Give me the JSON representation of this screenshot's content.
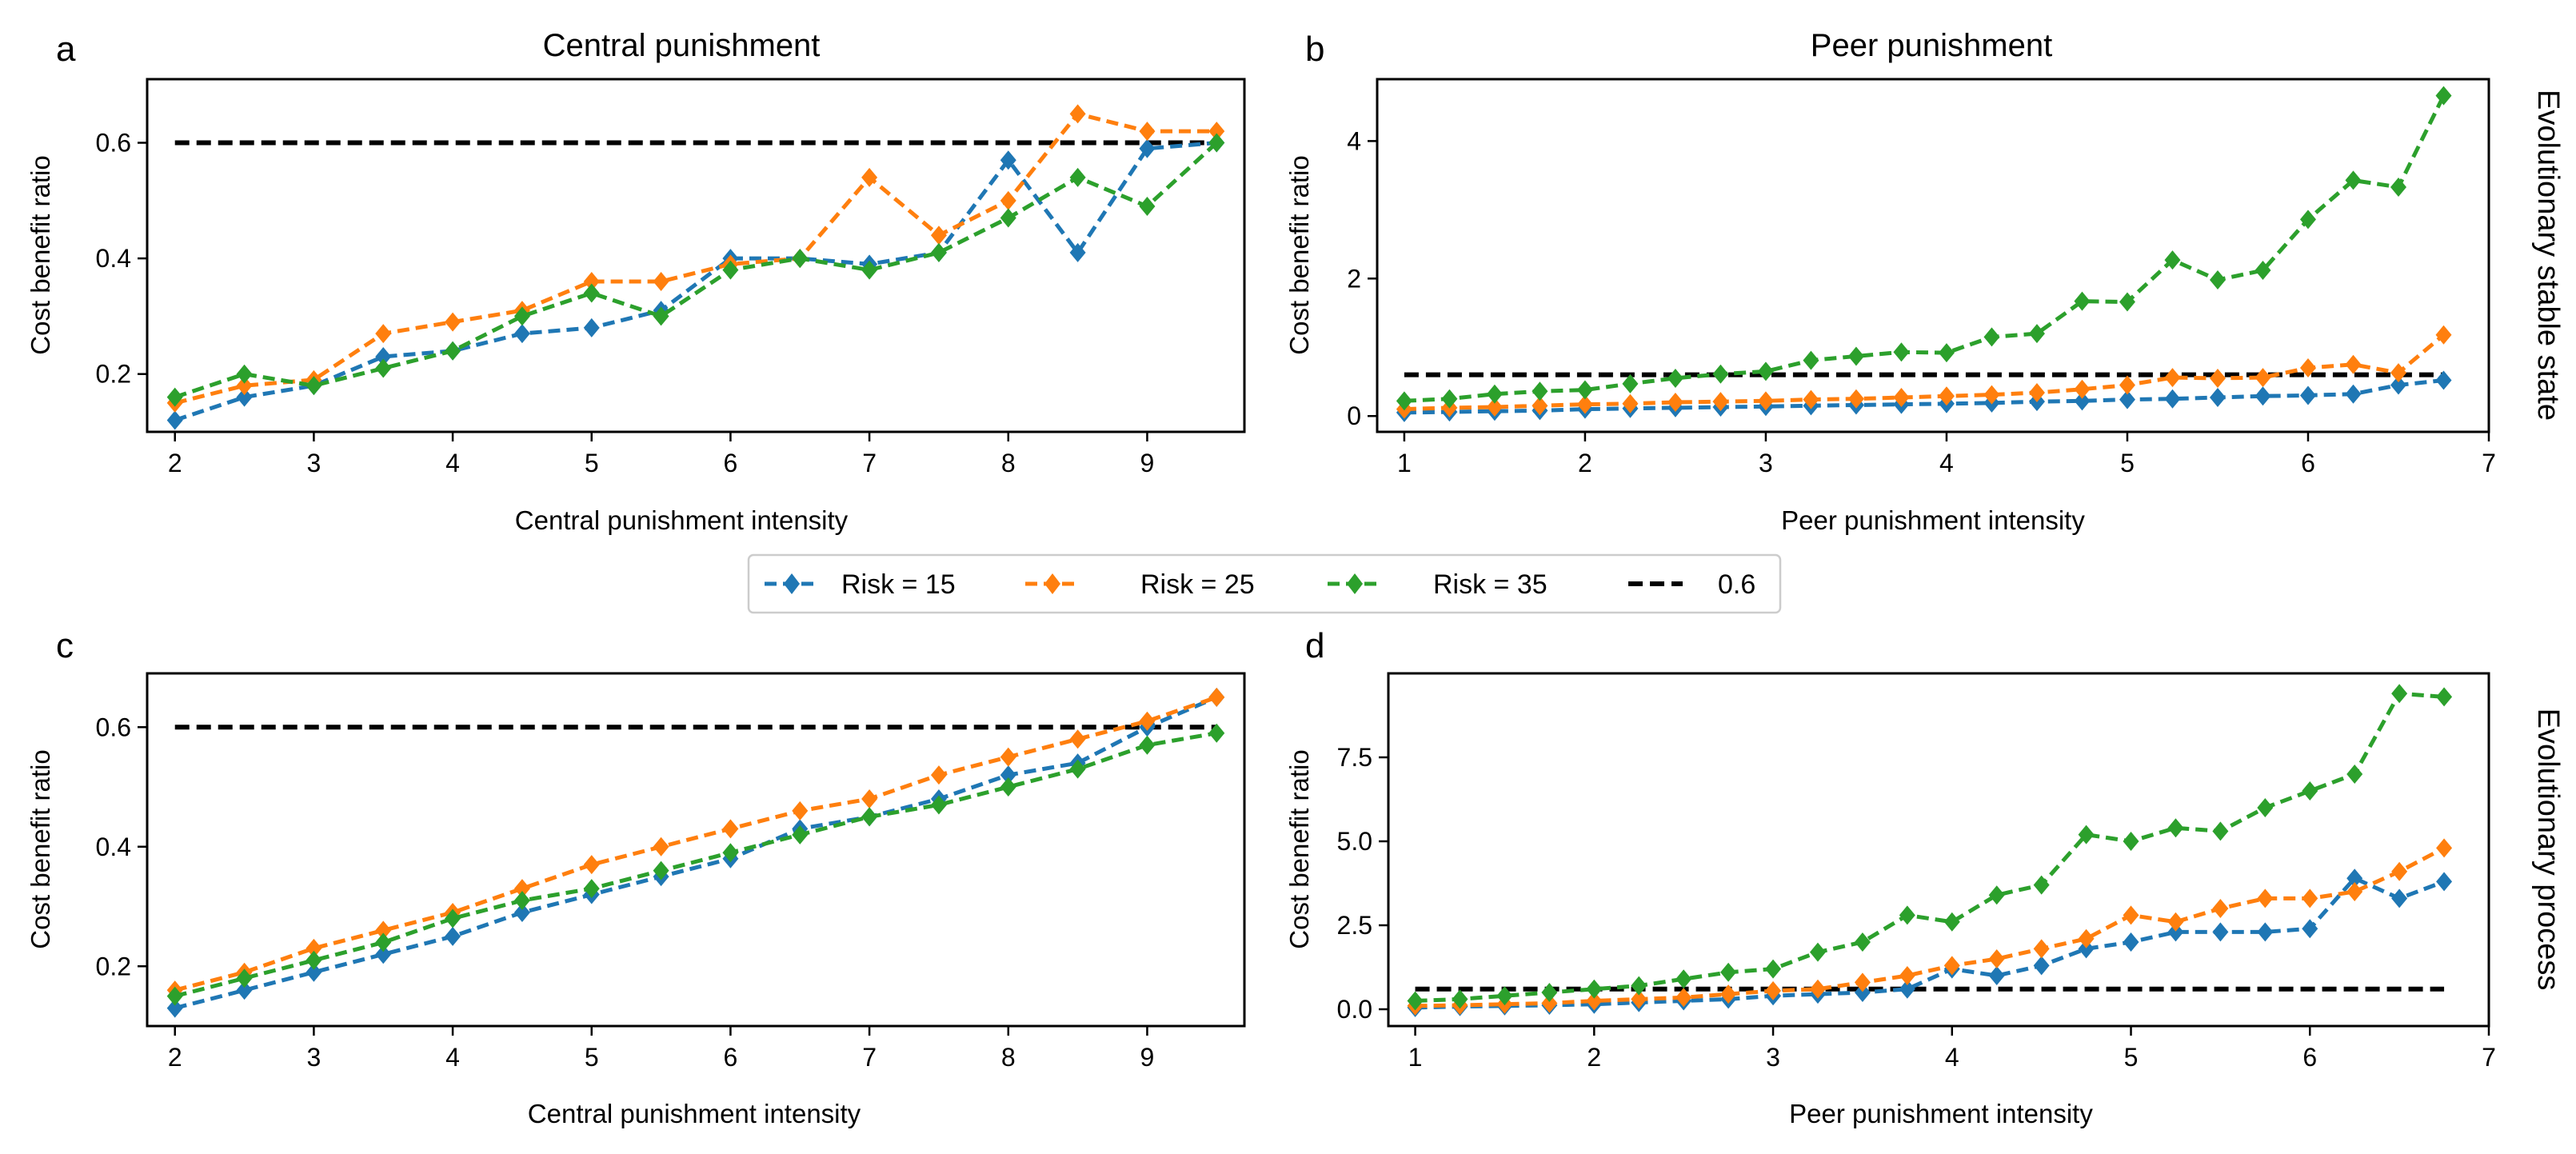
{
  "legend": {
    "entries": [
      {
        "label": "Risk = 15",
        "color": "#1f77b4",
        "marker": "diamond"
      },
      {
        "label": "Risk = 25",
        "color": "#ff7f0e",
        "marker": "diamond"
      },
      {
        "label": "Risk = 35",
        "color": "#2ca02c",
        "marker": "diamond"
      },
      {
        "label": "0.6",
        "color": "#000000",
        "marker": "none"
      }
    ]
  },
  "row_labels": {
    "top": "Evolutionary stable state",
    "bottom": "Evolutionary process"
  },
  "chart_data": [
    {
      "panel": "a",
      "type": "line",
      "title": "Central punishment",
      "xlabel": "Central punishment intensity",
      "ylabel": "Cost benefit ratio",
      "xlim": [
        1.8,
        9.7
      ],
      "ylim": [
        0.1,
        0.71
      ],
      "xticks": [
        2,
        3,
        4,
        5,
        6,
        7,
        8,
        9
      ],
      "yticks": [
        0.2,
        0.4,
        0.6
      ],
      "ytick_labels": [
        "0.2",
        "0.4",
        "0.6"
      ],
      "x": [
        2,
        2.5,
        3,
        3.5,
        4,
        4.5,
        5,
        5.5,
        6,
        6.5,
        7,
        7.5,
        8,
        8.5,
        9,
        9.5
      ],
      "series": [
        {
          "name": "Risk = 15",
          "color": "#1f77b4",
          "values": [
            0.12,
            0.16,
            0.18,
            0.23,
            0.24,
            0.27,
            0.28,
            0.31,
            0.4,
            0.4,
            0.39,
            0.41,
            0.57,
            0.41,
            0.59,
            0.6
          ]
        },
        {
          "name": "Risk = 25",
          "color": "#ff7f0e",
          "values": [
            0.15,
            0.18,
            0.19,
            0.27,
            0.29,
            0.31,
            0.36,
            0.36,
            0.39,
            0.4,
            0.54,
            0.44,
            0.5,
            0.65,
            0.62,
            0.62
          ]
        },
        {
          "name": "Risk = 35",
          "color": "#2ca02c",
          "values": [
            0.16,
            0.2,
            0.18,
            0.21,
            0.24,
            0.3,
            0.34,
            0.3,
            0.38,
            0.4,
            0.38,
            0.41,
            0.47,
            0.54,
            0.49,
            0.6
          ]
        }
      ],
      "reference": {
        "name": "0.6",
        "value": 0.6,
        "x_range": [
          2,
          9.5
        ]
      }
    },
    {
      "panel": "b",
      "type": "line",
      "title": "Peer punishment",
      "xlabel": "Peer punishment intensity",
      "ylabel": "Cost benefit ratio",
      "xlim": [
        0.85,
        7.0
      ],
      "ylim": [
        -0.23,
        4.9
      ],
      "xticks": [
        1,
        2,
        3,
        4,
        5,
        6,
        7
      ],
      "yticks": [
        0,
        2,
        4
      ],
      "ytick_labels": [
        "0",
        "2",
        "4"
      ],
      "x": [
        1,
        1.25,
        1.5,
        1.75,
        2,
        2.25,
        2.5,
        2.75,
        3,
        3.25,
        3.5,
        3.75,
        4,
        4.25,
        4.5,
        4.75,
        5,
        5.25,
        5.5,
        5.75,
        6,
        6.25,
        6.5,
        6.75
      ],
      "series": [
        {
          "name": "Risk = 15",
          "color": "#1f77b4",
          "values": [
            0.05,
            0.06,
            0.07,
            0.08,
            0.1,
            0.11,
            0.12,
            0.13,
            0.14,
            0.15,
            0.16,
            0.17,
            0.18,
            0.19,
            0.21,
            0.22,
            0.24,
            0.25,
            0.27,
            0.29,
            0.3,
            0.32,
            0.45,
            0.52
          ]
        },
        {
          "name": "Risk = 25",
          "color": "#ff7f0e",
          "values": [
            0.1,
            0.12,
            0.13,
            0.15,
            0.17,
            0.18,
            0.2,
            0.21,
            0.22,
            0.24,
            0.25,
            0.27,
            0.29,
            0.31,
            0.34,
            0.39,
            0.45,
            0.56,
            0.55,
            0.56,
            0.7,
            0.75,
            0.63,
            1.18
          ]
        },
        {
          "name": "Risk = 35",
          "color": "#2ca02c",
          "values": [
            0.22,
            0.25,
            0.32,
            0.36,
            0.38,
            0.47,
            0.55,
            0.61,
            0.65,
            0.81,
            0.87,
            0.93,
            0.92,
            1.15,
            1.2,
            1.67,
            1.66,
            2.27,
            1.98,
            2.12,
            2.86,
            3.43,
            3.33,
            4.66
          ]
        }
      ],
      "reference": {
        "name": "0.6",
        "value": 0.6,
        "x_range": [
          1,
          6.75
        ]
      }
    },
    {
      "panel": "c",
      "type": "line",
      "title": "",
      "xlabel": "Central punishment intensity",
      "ylabel": "Cost benefit ratio",
      "xlim": [
        1.8,
        9.7
      ],
      "ylim": [
        0.1,
        0.69
      ],
      "xticks": [
        2,
        3,
        4,
        5,
        6,
        7,
        8,
        9
      ],
      "yticks": [
        0.2,
        0.4,
        0.6
      ],
      "ytick_labels": [
        "0.2",
        "0.4",
        "0.6"
      ],
      "x": [
        2,
        2.5,
        3,
        3.5,
        4,
        4.5,
        5,
        5.5,
        6,
        6.5,
        7,
        7.5,
        8,
        8.5,
        9,
        9.5
      ],
      "series": [
        {
          "name": "Risk = 15",
          "color": "#1f77b4",
          "values": [
            0.13,
            0.16,
            0.19,
            0.22,
            0.25,
            0.29,
            0.32,
            0.35,
            0.38,
            0.43,
            0.45,
            0.48,
            0.52,
            0.54,
            0.6,
            0.65
          ]
        },
        {
          "name": "Risk = 25",
          "color": "#ff7f0e",
          "values": [
            0.16,
            0.19,
            0.23,
            0.26,
            0.29,
            0.33,
            0.37,
            0.4,
            0.43,
            0.46,
            0.48,
            0.52,
            0.55,
            0.58,
            0.61,
            0.65
          ]
        },
        {
          "name": "Risk = 35",
          "color": "#2ca02c",
          "values": [
            0.15,
            0.18,
            0.21,
            0.24,
            0.28,
            0.31,
            0.33,
            0.36,
            0.39,
            0.42,
            0.45,
            0.47,
            0.5,
            0.53,
            0.57,
            0.59
          ]
        }
      ],
      "reference": {
        "name": "0.6",
        "value": 0.6,
        "x_range": [
          2,
          9.5
        ]
      }
    },
    {
      "panel": "d",
      "type": "line",
      "title": "",
      "xlabel": "Peer punishment intensity",
      "ylabel": "Cost benefit ratio",
      "xlim": [
        0.85,
        7.0
      ],
      "ylim": [
        -0.5,
        10.0
      ],
      "xticks": [
        1,
        2,
        3,
        4,
        5,
        6,
        7
      ],
      "yticks": [
        0.0,
        2.5,
        5.0,
        7.5
      ],
      "ytick_labels": [
        "0.0",
        "2.5",
        "5.0",
        "7.5"
      ],
      "x": [
        1,
        1.25,
        1.5,
        1.75,
        2,
        2.25,
        2.5,
        2.75,
        3,
        3.25,
        3.5,
        3.75,
        4,
        4.25,
        4.5,
        4.75,
        5,
        5.25,
        5.5,
        5.75,
        6,
        6.25,
        6.5,
        6.75
      ],
      "series": [
        {
          "name": "Risk = 15",
          "color": "#1f77b4",
          "values": [
            0.05,
            0.08,
            0.1,
            0.12,
            0.15,
            0.2,
            0.25,
            0.3,
            0.4,
            0.45,
            0.5,
            0.6,
            1.2,
            1.0,
            1.3,
            1.8,
            2.0,
            2.3,
            2.3,
            2.3,
            2.4,
            3.9,
            3.3,
            3.8
          ]
        },
        {
          "name": "Risk = 25",
          "color": "#ff7f0e",
          "values": [
            0.1,
            0.12,
            0.15,
            0.18,
            0.25,
            0.3,
            0.35,
            0.45,
            0.55,
            0.6,
            0.8,
            1.0,
            1.3,
            1.5,
            1.8,
            2.1,
            2.8,
            2.6,
            3.0,
            3.3,
            3.3,
            3.5,
            4.1,
            4.8
          ]
        },
        {
          "name": "Risk = 35",
          "color": "#2ca02c",
          "values": [
            0.25,
            0.3,
            0.4,
            0.5,
            0.6,
            0.7,
            0.9,
            1.1,
            1.2,
            1.7,
            2.0,
            2.8,
            2.6,
            3.4,
            3.7,
            5.2,
            5.0,
            5.4,
            5.3,
            6.0,
            6.5,
            7.0,
            9.4,
            9.3
          ]
        }
      ],
      "reference": {
        "name": "0.6",
        "value": 0.6,
        "x_range": [
          1,
          6.75
        ]
      }
    }
  ]
}
